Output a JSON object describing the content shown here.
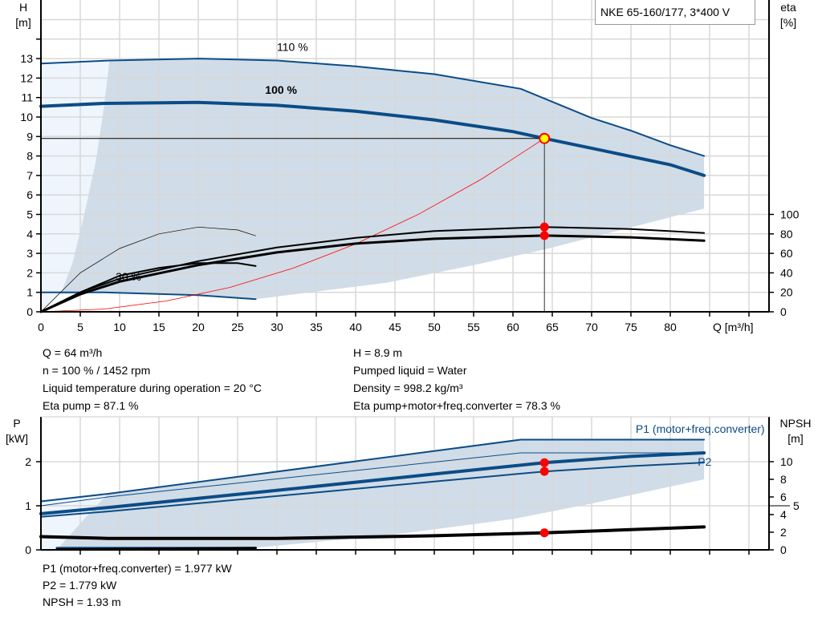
{
  "legend_title": "NKE 65-160/177, 3*400 V",
  "info_top_left": [
    "Q = 64 m³/h",
    "n = 100 % / 1452 rpm",
    "Liquid temperature during operation = 20 °C",
    "Eta pump = 87.1 %"
  ],
  "info_top_right": [
    "H = 8.9 m",
    "Pumped liquid = Water",
    "Density = 998.2 kg/m³",
    "Eta pump+motor+freq.converter = 78.3 %"
  ],
  "info_bottom": [
    "P1 (motor+freq.converter) = 1.977 kW",
    "P2 = 1.779 kW",
    "NPSH = 1.93 m"
  ],
  "colors": {
    "curve_blue": "#0b4c87",
    "shade": "#d0dce7",
    "shade_light": "#eef5fd",
    "system_curve": "#ff0000",
    "point": "#ff0000",
    "duty_point_fill": "#ffff00",
    "grid": "#d8d8d8"
  },
  "chart_data": [
    {
      "type": "line",
      "title": "",
      "ylabel": "H",
      "yunit": "[m]",
      "y2label": "eta",
      "y2unit": "[%]",
      "xlabel": "Q [m³/h]",
      "xlim": [
        0,
        92.5
      ],
      "ylim": [
        0,
        16
      ],
      "y2lim": [
        0,
        320
      ],
      "xticks": [
        "0",
        "5",
        "10",
        "15",
        "20",
        "25",
        "30",
        "35",
        "40",
        "45",
        "50",
        "55",
        "60",
        "65",
        "70",
        "75",
        "80"
      ],
      "yticks": [
        "0",
        "1",
        "2",
        "3",
        "4",
        "5",
        "6",
        "7",
        "8",
        "9",
        "10",
        "11",
        "12",
        "13"
      ],
      "y2ticks": [
        "0",
        "20",
        "40",
        "60",
        "80",
        "100"
      ],
      "grid": true,
      "annotations": [
        {
          "text": "110 %",
          "x": 30,
          "y": 13.4
        },
        {
          "text": "100 %",
          "x": 28.5,
          "y": 11.2
        },
        {
          "text": "30 %",
          "x": 9.5,
          "y": 1.6
        }
      ],
      "regions": [
        {
          "kind": "operating-range",
          "points": [
            [
              2.5,
              0.9
            ],
            [
              4,
              2.5
            ],
            [
              5.5,
              5
            ],
            [
              7,
              7.8
            ],
            [
              8,
              10.5
            ],
            [
              8.7,
              12.9
            ],
            [
              20,
              13.0
            ],
            [
              30,
              12.9
            ],
            [
              40,
              12.6
            ],
            [
              50,
              12.2
            ],
            [
              61,
              11.45
            ],
            [
              70,
              9.95
            ],
            [
              75,
              9.3
            ],
            [
              80,
              8.55
            ],
            [
              84.3,
              8.0
            ],
            [
              84.3,
              5.3
            ],
            [
              64,
              3.2
            ],
            [
              55,
              2.4
            ],
            [
              44,
              1.5
            ],
            [
              27.3,
              0.65
            ],
            [
              20,
              0.85
            ],
            [
              8,
              1.0
            ]
          ]
        },
        {
          "kind": "low-flow-range",
          "points": [
            [
              0,
              0
            ],
            [
              0,
              12.75
            ],
            [
              8.7,
              12.9
            ],
            [
              8,
              10.5
            ],
            [
              7,
              7.8
            ],
            [
              5.5,
              5
            ],
            [
              4,
              2.5
            ],
            [
              2.5,
              0.9
            ],
            [
              1,
              0.3
            ]
          ]
        }
      ],
      "series": [
        {
          "axis": "H",
          "style": "blue-2",
          "points": [
            [
              0,
              12.75
            ],
            [
              8.7,
              12.9
            ],
            [
              20,
              13.0
            ],
            [
              30,
              12.9
            ],
            [
              40,
              12.6
            ],
            [
              50,
              12.2
            ],
            [
              61,
              11.45
            ],
            [
              70,
              9.95
            ],
            [
              75,
              9.3
            ],
            [
              80,
              8.55
            ],
            [
              84.3,
              8.0
            ]
          ]
        },
        {
          "axis": "H",
          "style": "blue-4",
          "points": [
            [
              0,
              10.55
            ],
            [
              8,
              10.7
            ],
            [
              20,
              10.75
            ],
            [
              30,
              10.6
            ],
            [
              40,
              10.3
            ],
            [
              50,
              9.85
            ],
            [
              60,
              9.25
            ],
            [
              64,
              8.9
            ],
            [
              70,
              8.4
            ],
            [
              80,
              7.55
            ],
            [
              84.3,
              7.0
            ]
          ]
        },
        {
          "axis": "H",
          "style": "blue-2",
          "points": [
            [
              0,
              1.0
            ],
            [
              8,
              1.0
            ],
            [
              20,
              0.85
            ],
            [
              27.3,
              0.65
            ]
          ]
        },
        {
          "axis": "H",
          "style": "red-1",
          "points": [
            [
              0,
              0
            ],
            [
              8,
              0.14
            ],
            [
              16,
              0.56
            ],
            [
              24,
              1.25
            ],
            [
              32,
              2.23
            ],
            [
              40,
              3.48
            ],
            [
              48,
              5.01
            ],
            [
              56,
              6.81
            ],
            [
              64,
              8.9
            ]
          ]
        },
        {
          "axis": "eta",
          "style": "black-2",
          "points": [
            [
              0,
              0
            ],
            [
              5,
              20
            ],
            [
              10,
              34
            ],
            [
              20,
              52
            ],
            [
              30,
              66
            ],
            [
              40,
              76
            ],
            [
              50,
              83
            ],
            [
              64,
              87.1
            ],
            [
              75,
              85
            ],
            [
              84.3,
              81
            ]
          ]
        },
        {
          "axis": "eta",
          "style": "black-3",
          "points": [
            [
              0,
              0
            ],
            [
              5,
              18
            ],
            [
              10,
              31
            ],
            [
              20,
              48
            ],
            [
              30,
              61
            ],
            [
              40,
              70
            ],
            [
              50,
              75
            ],
            [
              64,
              78.3
            ],
            [
              75,
              76.5
            ],
            [
              84.3,
              73
            ]
          ]
        },
        {
          "axis": "eta",
          "style": "black-thin",
          "points": [
            [
              0,
              0
            ],
            [
              5,
              40
            ],
            [
              10,
              65
            ],
            [
              15,
              80
            ],
            [
              20,
              87
            ],
            [
              25,
              84
            ],
            [
              27.3,
              78
            ]
          ]
        },
        {
          "axis": "eta",
          "style": "black-2",
          "points": [
            [
              0,
              0
            ],
            [
              5,
              20
            ],
            [
              10,
              37
            ],
            [
              15,
              45
            ],
            [
              20,
              50
            ],
            [
              25,
              50
            ],
            [
              27.3,
              47
            ]
          ]
        }
      ],
      "duty_point": {
        "Q": 64,
        "H": 8.9
      },
      "markers": [
        {
          "axis": "eta",
          "x": 64,
          "y": 87.1
        },
        {
          "axis": "eta",
          "x": 64,
          "y": 78.3
        }
      ]
    },
    {
      "type": "line",
      "title": "",
      "ylabel": "P",
      "yunit": "[kW]",
      "y2label": "NPSH",
      "y2unit": "[m]",
      "xlim": [
        0,
        92.5
      ],
      "ylim": [
        0,
        3.0
      ],
      "y2lim": [
        0,
        15
      ],
      "yticks": [
        "0",
        "1",
        "2"
      ],
      "y2ticks": [
        "0",
        "2",
        "4",
        "5",
        "6",
        "8",
        "10"
      ],
      "grid": true,
      "annotations": [
        {
          "text": "P1 (motor+freq.converter)",
          "x": 92,
          "y": 2.75
        },
        {
          "text": "P2",
          "x": 83.5,
          "y": 2.0
        }
      ],
      "regions": [
        {
          "kind": "operating-range",
          "points": [
            [
              2,
              0
            ],
            [
              4,
              0.4
            ],
            [
              6,
              0.8
            ],
            [
              8.5,
              1.27
            ],
            [
              61,
              2.5
            ],
            [
              84.3,
              2.5
            ],
            [
              84.3,
              1.6
            ],
            [
              70,
              1.05
            ],
            [
              60,
              0.7
            ],
            [
              45,
              0.35
            ],
            [
              27.3,
              0.05
            ]
          ]
        },
        {
          "kind": "low-flow-range",
          "points": [
            [
              0,
              0
            ],
            [
              0,
              1.1
            ],
            [
              8.5,
              1.27
            ],
            [
              6,
              0.8
            ],
            [
              4,
              0.4
            ],
            [
              2,
              0
            ]
          ]
        }
      ],
      "series": [
        {
          "axis": "P",
          "style": "blue-2",
          "points": [
            [
              0,
              1.1
            ],
            [
              8.5,
              1.27
            ],
            [
              61,
              2.5
            ],
            [
              84.3,
              2.5
            ]
          ]
        },
        {
          "axis": "P",
          "style": "blue-thin",
          "points": [
            [
              0,
              1.0
            ],
            [
              8.5,
              1.2
            ],
            [
              61,
              2.2
            ],
            [
              84.3,
              2.2
            ]
          ]
        },
        {
          "axis": "P",
          "style": "blue-4",
          "points": [
            [
              0,
              0.82
            ],
            [
              8.5,
              0.96
            ],
            [
              30,
              1.35
            ],
            [
              50,
              1.72
            ],
            [
              64,
              1.977
            ],
            [
              75,
              2.12
            ],
            [
              84.3,
              2.2
            ]
          ]
        },
        {
          "axis": "P",
          "style": "blue-2",
          "points": [
            [
              0,
              0.75
            ],
            [
              8.5,
              0.87
            ],
            [
              30,
              1.22
            ],
            [
              50,
              1.55
            ],
            [
              64,
              1.779
            ],
            [
              75,
              1.9
            ],
            [
              84.3,
              1.98
            ]
          ]
        },
        {
          "axis": "NPSH",
          "style": "black-4",
          "points": [
            [
              0,
              1.5
            ],
            [
              8.5,
              1.3
            ],
            [
              30,
              1.3
            ],
            [
              50,
              1.6
            ],
            [
              64,
              1.93
            ],
            [
              84.3,
              2.6
            ]
          ]
        },
        {
          "axis": "P",
          "style": "blue-2",
          "points": [
            [
              2,
              0.05
            ],
            [
              27.3,
              0.05
            ]
          ]
        },
        {
          "axis": "NPSH",
          "style": "black-3",
          "points": [
            [
              2,
              0.05
            ],
            [
              27.3,
              0.2
            ]
          ]
        }
      ],
      "markers": [
        {
          "axis": "P",
          "x": 64,
          "y": 1.977
        },
        {
          "axis": "P",
          "x": 64,
          "y": 1.779
        },
        {
          "axis": "NPSH",
          "x": 64,
          "y": 1.93
        }
      ]
    }
  ]
}
